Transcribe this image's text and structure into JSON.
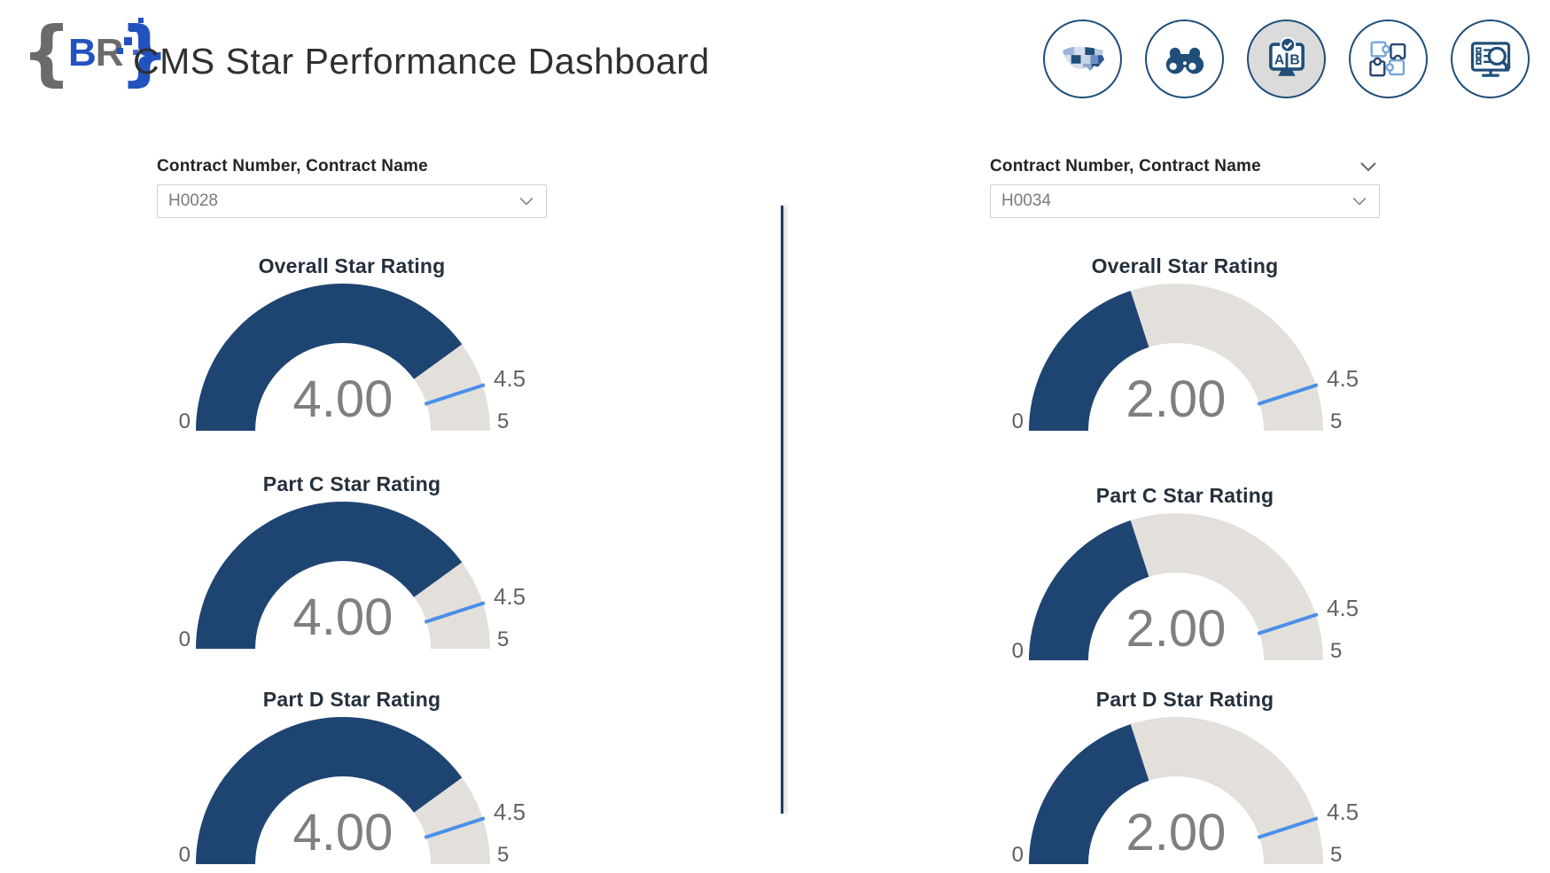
{
  "header": {
    "logo": {
      "open_brace": "{",
      "letter_b": "B",
      "letter_r": "R",
      "close_brace": "}"
    },
    "title": "CMS Star Performance Dashboard",
    "nav_icons": [
      {
        "id": "us-map-icon",
        "selected": false
      },
      {
        "id": "binoculars-icon",
        "selected": false
      },
      {
        "id": "ab-compare-monitor-icon",
        "selected": true
      },
      {
        "id": "puzzle-pieces-icon",
        "selected": false
      },
      {
        "id": "report-magnifier-icon",
        "selected": false
      }
    ]
  },
  "colors": {
    "gauge_fill_navy": "#1E4472",
    "gauge_track_gray": "#E3E0DB",
    "target_line_blue": "#4A8FE8",
    "value_text_gray": "#7F7F7F",
    "tick_text_gray": "#605E5C",
    "icon_navy": "#1F4E79",
    "selected_icon_bg": "#DBDBDB",
    "divider_navy": "#1E3A5F"
  },
  "panels": [
    {
      "slicer": {
        "label": "Contract Number, Contract Name",
        "value": "H0028",
        "header_chevron": false
      },
      "gauges": [
        {
          "title": "Overall Star Rating",
          "value": 4.0,
          "value_label": "4.00",
          "min": 0,
          "max": 5,
          "target": 4.5,
          "min_label": "0",
          "max_label": "5",
          "target_label": "4.5"
        },
        {
          "title": "Part C Star Rating",
          "value": 4.0,
          "value_label": "4.00",
          "min": 0,
          "max": 5,
          "target": 4.5,
          "min_label": "0",
          "max_label": "5",
          "target_label": "4.5"
        },
        {
          "title": "Part D Star Rating",
          "value": 4.0,
          "value_label": "4.00",
          "min": 0,
          "max": 5,
          "target": 4.5,
          "min_label": "0",
          "max_label": "5",
          "target_label": "4.5"
        }
      ]
    },
    {
      "slicer": {
        "label": "Contract Number, Contract Name",
        "value": "H0034",
        "header_chevron": true
      },
      "gauges": [
        {
          "title": "Overall Star Rating",
          "value": 2.0,
          "value_label": "2.00",
          "min": 0,
          "max": 5,
          "target": 4.5,
          "min_label": "0",
          "max_label": "5",
          "target_label": "4.5"
        },
        {
          "title": "Part C Star Rating",
          "value": 2.0,
          "value_label": "2.00",
          "min": 0,
          "max": 5,
          "target": 4.5,
          "min_label": "0",
          "max_label": "5",
          "target_label": "4.5"
        },
        {
          "title": "Part D Star Rating",
          "value": 2.0,
          "value_label": "2.00",
          "min": 0,
          "max": 5,
          "target": 4.5,
          "min_label": "0",
          "max_label": "5",
          "target_label": "4.5"
        }
      ]
    }
  ],
  "chart_data": [
    {
      "type": "gauge",
      "group": "H0028",
      "title": "Overall Star Rating",
      "value": 4.0,
      "min": 0,
      "max": 5,
      "target": 4.5
    },
    {
      "type": "gauge",
      "group": "H0028",
      "title": "Part C Star Rating",
      "value": 4.0,
      "min": 0,
      "max": 5,
      "target": 4.5
    },
    {
      "type": "gauge",
      "group": "H0028",
      "title": "Part D Star Rating",
      "value": 4.0,
      "min": 0,
      "max": 5,
      "target": 4.5
    },
    {
      "type": "gauge",
      "group": "H0034",
      "title": "Overall Star Rating",
      "value": 2.0,
      "min": 0,
      "max": 5,
      "target": 4.5
    },
    {
      "type": "gauge",
      "group": "H0034",
      "title": "Part C Star Rating",
      "value": 2.0,
      "min": 0,
      "max": 5,
      "target": 4.5
    },
    {
      "type": "gauge",
      "group": "H0034",
      "title": "Part D Star Rating",
      "value": 2.0,
      "min": 0,
      "max": 5,
      "target": 4.5
    }
  ]
}
